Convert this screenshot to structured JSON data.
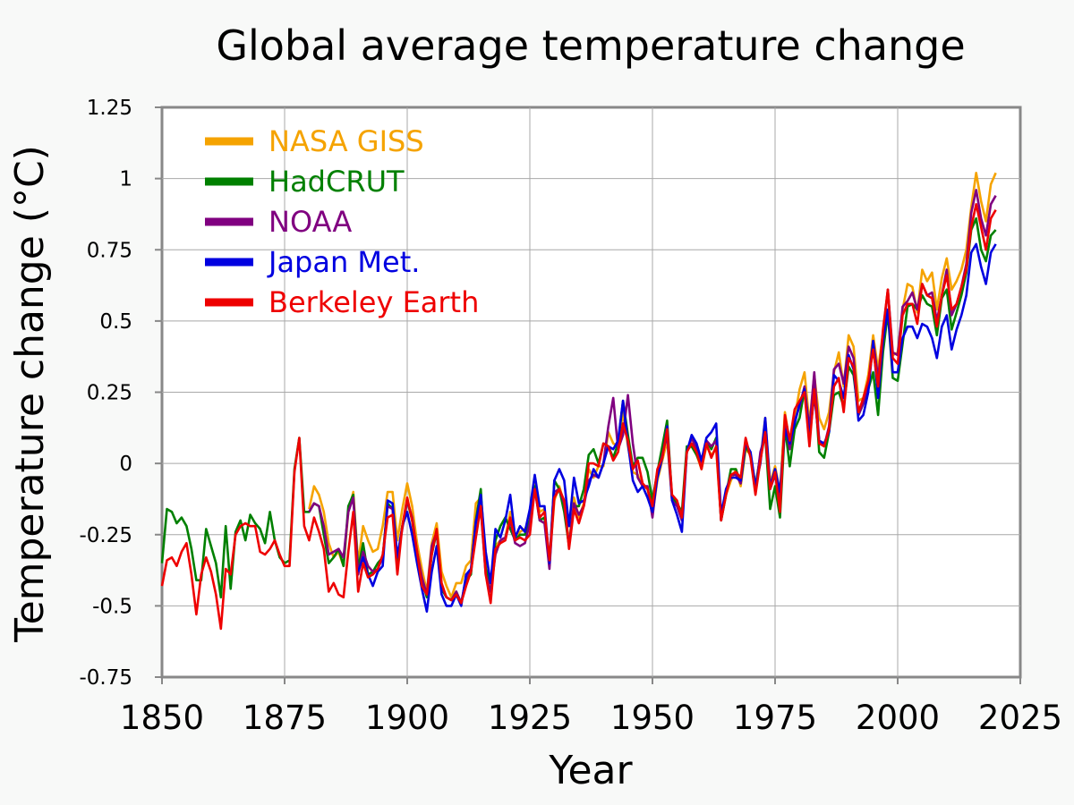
{
  "chart_data": {
    "type": "line",
    "title": "Global average temperature change",
    "xlabel": "Year",
    "ylabel": "Temperature change (°C)",
    "xlim": [
      1850,
      2025
    ],
    "ylim": [
      -0.75,
      1.25
    ],
    "xticks": [
      "1850",
      "1875",
      "1900",
      "1925",
      "1950",
      "1975",
      "2000",
      "2025"
    ],
    "yticks": [
      "-0.75",
      "-0.5",
      "-0.25",
      "0",
      "0.25",
      "0.5",
      "0.75",
      "1",
      "1.25"
    ],
    "grid": true,
    "legend_position": "top-left",
    "series": [
      {
        "name": "NASA GISS",
        "color": "#f5a300",
        "start_year": 1880,
        "values": [
          -0.16,
          -0.08,
          -0.11,
          -0.17,
          -0.28,
          -0.33,
          -0.31,
          -0.36,
          -0.17,
          -0.1,
          -0.35,
          -0.22,
          -0.27,
          -0.31,
          -0.3,
          -0.22,
          -0.1,
          -0.1,
          -0.27,
          -0.16,
          -0.07,
          -0.15,
          -0.28,
          -0.37,
          -0.45,
          -0.28,
          -0.21,
          -0.38,
          -0.43,
          -0.47,
          -0.42,
          -0.42,
          -0.36,
          -0.34,
          -0.14,
          -0.12,
          -0.33,
          -0.44,
          -0.29,
          -0.27,
          -0.26,
          -0.17,
          -0.26,
          -0.24,
          -0.23,
          -0.2,
          -0.07,
          -0.17,
          -0.16,
          -0.35,
          -0.13,
          -0.08,
          -0.14,
          -0.28,
          -0.12,
          -0.19,
          -0.14,
          -0.02,
          -0.05,
          -0.01,
          -0.01,
          0.11,
          0.07,
          0.06,
          0.18,
          0.06,
          -0.03,
          -0.04,
          -0.08,
          -0.09,
          -0.18,
          -0.06,
          0.01,
          0.08,
          -0.13,
          -0.14,
          -0.19,
          0.05,
          0.06,
          0.03,
          -0.02,
          0.06,
          0.03,
          0.05,
          -0.2,
          -0.11,
          -0.06,
          -0.02,
          -0.08,
          0.05,
          0.03,
          -0.08,
          0.01,
          0.16,
          -0.07,
          -0.01,
          -0.1,
          0.18,
          0.07,
          0.16,
          0.26,
          0.32,
          0.14,
          0.31,
          0.16,
          0.12,
          0.18,
          0.32,
          0.39,
          0.27,
          0.45,
          0.41,
          0.22,
          0.23,
          0.31,
          0.45,
          0.33,
          0.46,
          0.61,
          0.38,
          0.39,
          0.54,
          0.63,
          0.62,
          0.53,
          0.68,
          0.64,
          0.67,
          0.54,
          0.65,
          0.72,
          0.61,
          0.64,
          0.68,
          0.75,
          0.9,
          1.02,
          0.92,
          0.85,
          0.98,
          1.02
        ]
      },
      {
        "name": "HadCRUT",
        "color": "#008000",
        "start_year": 1850,
        "values": [
          -0.35,
          -0.16,
          -0.17,
          -0.21,
          -0.19,
          -0.22,
          -0.3,
          -0.41,
          -0.41,
          -0.23,
          -0.29,
          -0.35,
          -0.47,
          -0.22,
          -0.44,
          -0.24,
          -0.2,
          -0.27,
          -0.18,
          -0.21,
          -0.23,
          -0.28,
          -0.17,
          -0.27,
          -0.33,
          -0.35,
          -0.34,
          -0.02,
          0.09,
          -0.17,
          -0.17,
          -0.14,
          -0.15,
          -0.25,
          -0.35,
          -0.33,
          -0.3,
          -0.36,
          -0.15,
          -0.11,
          -0.37,
          -0.28,
          -0.39,
          -0.38,
          -0.35,
          -0.33,
          -0.14,
          -0.16,
          -0.34,
          -0.22,
          -0.13,
          -0.2,
          -0.33,
          -0.41,
          -0.47,
          -0.32,
          -0.24,
          -0.44,
          -0.47,
          -0.48,
          -0.45,
          -0.49,
          -0.41,
          -0.39,
          -0.2,
          -0.09,
          -0.37,
          -0.42,
          -0.27,
          -0.22,
          -0.19,
          -0.23,
          -0.27,
          -0.25,
          -0.25,
          -0.2,
          -0.08,
          -0.2,
          -0.19,
          -0.36,
          -0.06,
          -0.09,
          -0.17,
          -0.29,
          -0.15,
          -0.15,
          -0.09,
          0.03,
          0.05,
          0.0,
          0.07,
          0.06,
          0.02,
          0.07,
          0.22,
          0.1,
          -0.01,
          0.02,
          0.02,
          -0.03,
          -0.13,
          -0.03,
          0.06,
          0.15,
          -0.12,
          -0.14,
          -0.17,
          0.06,
          0.06,
          0.03,
          -0.01,
          0.08,
          0.05,
          0.09,
          -0.2,
          -0.11,
          -0.02,
          -0.02,
          -0.07,
          0.06,
          0.03,
          -0.08,
          0.03,
          0.1,
          -0.16,
          -0.08,
          -0.19,
          0.13,
          -0.01,
          0.12,
          0.16,
          0.26,
          0.12,
          0.29,
          0.04,
          0.02,
          0.11,
          0.24,
          0.25,
          0.2,
          0.34,
          0.31,
          0.17,
          0.21,
          0.26,
          0.32,
          0.17,
          0.39,
          0.53,
          0.3,
          0.29,
          0.42,
          0.55,
          0.56,
          0.54,
          0.59,
          0.56,
          0.55,
          0.45,
          0.58,
          0.61,
          0.47,
          0.53,
          0.59,
          0.67,
          0.82,
          0.86,
          0.75,
          0.71,
          0.8,
          0.82
        ]
      },
      {
        "name": "NOAA",
        "color": "#800080",
        "start_year": 1880,
        "values": [
          -0.17,
          -0.14,
          -0.15,
          -0.22,
          -0.32,
          -0.31,
          -0.3,
          -0.33,
          -0.17,
          -0.12,
          -0.39,
          -0.31,
          -0.36,
          -0.38,
          -0.37,
          -0.33,
          -0.15,
          -0.16,
          -0.33,
          -0.23,
          -0.13,
          -0.19,
          -0.31,
          -0.4,
          -0.46,
          -0.29,
          -0.24,
          -0.43,
          -0.47,
          -0.48,
          -0.45,
          -0.49,
          -0.4,
          -0.38,
          -0.2,
          -0.16,
          -0.39,
          -0.45,
          -0.32,
          -0.27,
          -0.26,
          -0.2,
          -0.28,
          -0.29,
          -0.28,
          -0.21,
          -0.09,
          -0.2,
          -0.21,
          -0.37,
          -0.1,
          -0.09,
          -0.14,
          -0.29,
          -0.14,
          -0.18,
          -0.15,
          -0.06,
          -0.04,
          -0.05,
          0.0,
          0.13,
          0.23,
          0.05,
          0.1,
          0.24,
          0.07,
          -0.05,
          -0.08,
          -0.08,
          -0.19,
          -0.04,
          0.03,
          0.1,
          -0.13,
          -0.15,
          -0.2,
          0.04,
          0.09,
          0.05,
          -0.01,
          0.08,
          0.06,
          0.08,
          -0.2,
          -0.1,
          -0.04,
          -0.04,
          -0.07,
          0.08,
          0.03,
          -0.1,
          0.04,
          0.1,
          -0.09,
          -0.04,
          -0.13,
          0.15,
          0.05,
          0.15,
          0.2,
          0.27,
          0.12,
          0.32,
          0.08,
          0.06,
          0.13,
          0.33,
          0.35,
          0.28,
          0.41,
          0.37,
          0.17,
          0.21,
          0.28,
          0.43,
          0.3,
          0.45,
          0.61,
          0.39,
          0.38,
          0.55,
          0.57,
          0.6,
          0.54,
          0.63,
          0.59,
          0.6,
          0.5,
          0.59,
          0.68,
          0.52,
          0.56,
          0.62,
          0.7,
          0.88,
          0.96,
          0.86,
          0.8,
          0.91,
          0.94
        ]
      },
      {
        "name": "Japan Met.",
        "color": "#0000e0",
        "start_year": 1890,
        "values": [
          -0.38,
          -0.33,
          -0.39,
          -0.43,
          -0.38,
          -0.36,
          -0.13,
          -0.14,
          -0.33,
          -0.22,
          -0.17,
          -0.25,
          -0.35,
          -0.44,
          -0.52,
          -0.38,
          -0.29,
          -0.46,
          -0.5,
          -0.5,
          -0.46,
          -0.5,
          -0.39,
          -0.37,
          -0.21,
          -0.11,
          -0.31,
          -0.42,
          -0.23,
          -0.26,
          -0.2,
          -0.11,
          -0.26,
          -0.22,
          -0.24,
          -0.16,
          -0.04,
          -0.15,
          -0.15,
          -0.35,
          -0.06,
          -0.02,
          -0.06,
          -0.22,
          -0.05,
          -0.14,
          -0.13,
          -0.08,
          -0.02,
          -0.05,
          0.0,
          0.06,
          0.05,
          0.08,
          0.22,
          0.07,
          -0.06,
          -0.1,
          -0.08,
          -0.12,
          -0.17,
          -0.05,
          0.02,
          0.13,
          -0.13,
          -0.18,
          -0.24,
          0.04,
          0.1,
          0.07,
          0.01,
          0.09,
          0.11,
          0.14,
          -0.18,
          -0.09,
          -0.05,
          -0.05,
          -0.06,
          0.07,
          0.04,
          -0.08,
          0.0,
          0.16,
          -0.08,
          -0.02,
          -0.1,
          0.12,
          0.07,
          0.14,
          0.21,
          0.26,
          0.09,
          0.24,
          0.08,
          0.07,
          0.11,
          0.31,
          0.29,
          0.23,
          0.38,
          0.33,
          0.15,
          0.17,
          0.25,
          0.43,
          0.23,
          0.43,
          0.54,
          0.32,
          0.32,
          0.44,
          0.48,
          0.48,
          0.44,
          0.49,
          0.48,
          0.44,
          0.37,
          0.48,
          0.52,
          0.4,
          0.47,
          0.52,
          0.59,
          0.74,
          0.77,
          0.69,
          0.63,
          0.74,
          0.77
        ]
      },
      {
        "name": "Berkeley Earth",
        "color": "#ee0000",
        "start_year": 1850,
        "values": [
          -0.43,
          -0.34,
          -0.33,
          -0.36,
          -0.31,
          -0.28,
          -0.39,
          -0.53,
          -0.39,
          -0.33,
          -0.38,
          -0.46,
          -0.58,
          -0.37,
          -0.39,
          -0.25,
          -0.22,
          -0.21,
          -0.22,
          -0.22,
          -0.31,
          -0.32,
          -0.3,
          -0.27,
          -0.32,
          -0.36,
          -0.36,
          -0.03,
          0.09,
          -0.22,
          -0.27,
          -0.19,
          -0.24,
          -0.3,
          -0.45,
          -0.42,
          -0.46,
          -0.47,
          -0.31,
          -0.17,
          -0.45,
          -0.35,
          -0.4,
          -0.39,
          -0.37,
          -0.32,
          -0.19,
          -0.18,
          -0.39,
          -0.22,
          -0.12,
          -0.2,
          -0.31,
          -0.43,
          -0.46,
          -0.32,
          -0.23,
          -0.42,
          -0.47,
          -0.48,
          -0.46,
          -0.49,
          -0.43,
          -0.38,
          -0.26,
          -0.15,
          -0.39,
          -0.49,
          -0.3,
          -0.28,
          -0.27,
          -0.19,
          -0.27,
          -0.26,
          -0.27,
          -0.25,
          -0.09,
          -0.19,
          -0.17,
          -0.34,
          -0.12,
          -0.09,
          -0.13,
          -0.3,
          -0.16,
          -0.21,
          -0.15,
          0.0,
          0.0,
          -0.01,
          0.07,
          0.06,
          0.01,
          0.04,
          0.14,
          0.08,
          -0.02,
          0.01,
          -0.07,
          -0.09,
          -0.15,
          -0.02,
          0.02,
          0.12,
          -0.11,
          -0.13,
          -0.19,
          0.04,
          0.07,
          0.04,
          -0.02,
          0.07,
          0.02,
          0.06,
          -0.2,
          -0.11,
          -0.04,
          -0.03,
          -0.05,
          0.09,
          0.02,
          -0.11,
          0.01,
          0.11,
          -0.09,
          -0.03,
          -0.17,
          0.17,
          0.08,
          0.19,
          0.22,
          0.25,
          0.06,
          0.26,
          0.07,
          0.06,
          0.12,
          0.27,
          0.3,
          0.18,
          0.37,
          0.34,
          0.18,
          0.23,
          0.29,
          0.4,
          0.27,
          0.47,
          0.61,
          0.37,
          0.35,
          0.52,
          0.56,
          0.56,
          0.49,
          0.63,
          0.59,
          0.58,
          0.48,
          0.59,
          0.66,
          0.54,
          0.56,
          0.62,
          0.68,
          0.83,
          0.91,
          0.83,
          0.75,
          0.86,
          0.89
        ]
      }
    ]
  }
}
